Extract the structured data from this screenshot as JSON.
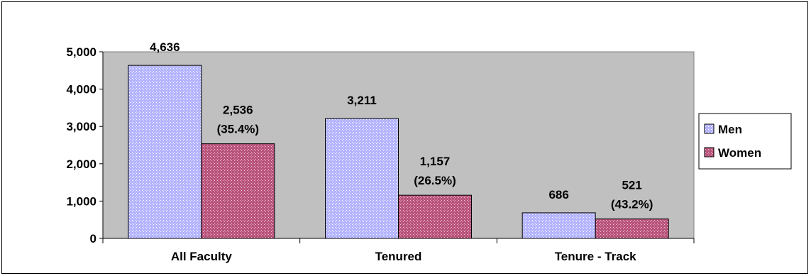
{
  "chart_data": {
    "type": "bar",
    "categories": [
      "All Faculty",
      "Tenured",
      "Tenure - Track"
    ],
    "series": [
      {
        "name": "Men",
        "values": [
          4636,
          3211,
          686
        ],
        "labels": [
          "4,636",
          "3,211",
          "686"
        ],
        "color": "#b3b3ff"
      },
      {
        "name": "Women",
        "values": [
          2536,
          1157,
          521
        ],
        "labels": [
          "2,536",
          "1,157",
          "521"
        ],
        "pct_labels": [
          "(35.4%)",
          "(26.5%)",
          "(43.2%)"
        ],
        "color": "#b8527a"
      }
    ],
    "ylim": [
      0,
      5000
    ],
    "yticks": [
      0,
      1000,
      2000,
      3000,
      4000,
      5000
    ],
    "ytick_labels": [
      "0",
      "1,000",
      "2,000",
      "3,000",
      "4,000",
      "5,000"
    ],
    "title": "",
    "xlabel": "",
    "ylabel": "",
    "plot_background": "#c0c0c0",
    "grid": false,
    "legend_position": "right"
  }
}
